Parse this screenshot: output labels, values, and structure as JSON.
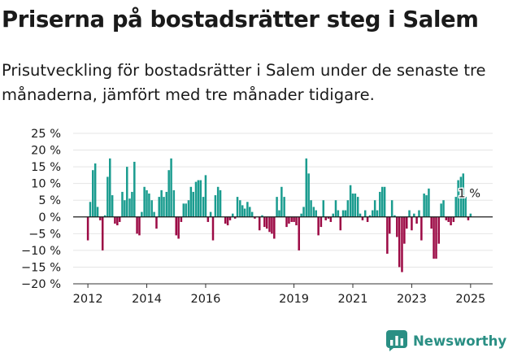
{
  "title": "Priserna på bostadsrätter steg i Salem",
  "subtitle": "Prisutveckling för bostadsrätter i Salem under de senaste tre månaderna, jämfört med tre månader tidigare.",
  "brand": {
    "name": "Newsworthy",
    "icon": "newsworthy-logo-icon",
    "color": "#2a8f84"
  },
  "chart_data": {
    "type": "bar",
    "unit": "%",
    "ylim": [
      -20,
      25
    ],
    "y_ticks": [
      25,
      20,
      15,
      10,
      5,
      0,
      -5,
      -10,
      -15,
      -20
    ],
    "y_tick_labels": [
      "25 %",
      "20 %",
      "15 %",
      "10 %",
      "5 %",
      "0 %",
      "−5 %",
      "−10 %",
      "−15 %",
      "−20 %"
    ],
    "x_ticks": [
      "2012",
      "2014",
      "2016",
      "2019",
      "2021",
      "2023",
      "2025"
    ],
    "x_tick_values": [
      2012,
      2014,
      2016,
      2019,
      2021,
      2023,
      2025
    ],
    "x_range": [
      2011.5,
      2025.75
    ],
    "grid": "horizontal",
    "colors": {
      "positive": "#1a9c8f",
      "negative": "#9c0a45",
      "zero_line": "#1a1a1a",
      "grid": "#e5e5e5"
    },
    "annotation": {
      "text": "1 %",
      "x": 2024.9,
      "y": 1
    },
    "bars": [
      {
        "x": 2012.0,
        "y": -7
      },
      {
        "x": 2012.08,
        "y": 4.5
      },
      {
        "x": 2012.17,
        "y": 14
      },
      {
        "x": 2012.25,
        "y": 16
      },
      {
        "x": 2012.33,
        "y": 3
      },
      {
        "x": 2012.42,
        "y": -1
      },
      {
        "x": 2012.5,
        "y": -10
      },
      {
        "x": 2012.58,
        "y": 0.5
      },
      {
        "x": 2012.67,
        "y": 12
      },
      {
        "x": 2012.75,
        "y": 17.5
      },
      {
        "x": 2012.83,
        "y": 6.5
      },
      {
        "x": 2012.92,
        "y": -2
      },
      {
        "x": 2013.0,
        "y": -2.5
      },
      {
        "x": 2013.08,
        "y": -1.5
      },
      {
        "x": 2013.17,
        "y": 7.5
      },
      {
        "x": 2013.25,
        "y": 5
      },
      {
        "x": 2013.33,
        "y": 15
      },
      {
        "x": 2013.42,
        "y": 5.5
      },
      {
        "x": 2013.5,
        "y": 7.5
      },
      {
        "x": 2013.58,
        "y": 16.5
      },
      {
        "x": 2013.67,
        "y": -5
      },
      {
        "x": 2013.75,
        "y": -5.5
      },
      {
        "x": 2013.83,
        "y": 1.5
      },
      {
        "x": 2013.92,
        "y": 9
      },
      {
        "x": 2014.0,
        "y": 8
      },
      {
        "x": 2014.08,
        "y": 7
      },
      {
        "x": 2014.17,
        "y": 5
      },
      {
        "x": 2014.25,
        "y": 1.5
      },
      {
        "x": 2014.33,
        "y": -3.5
      },
      {
        "x": 2014.42,
        "y": 6
      },
      {
        "x": 2014.5,
        "y": 8
      },
      {
        "x": 2014.58,
        "y": 6
      },
      {
        "x": 2014.67,
        "y": 7.5
      },
      {
        "x": 2014.75,
        "y": 14
      },
      {
        "x": 2014.83,
        "y": 17.5
      },
      {
        "x": 2014.92,
        "y": 8
      },
      {
        "x": 2015.0,
        "y": -5.5
      },
      {
        "x": 2015.08,
        "y": -6.5
      },
      {
        "x": 2015.17,
        "y": -1.5
      },
      {
        "x": 2015.25,
        "y": 4
      },
      {
        "x": 2015.33,
        "y": 4
      },
      {
        "x": 2015.42,
        "y": 5
      },
      {
        "x": 2015.5,
        "y": 9
      },
      {
        "x": 2015.58,
        "y": 7.5
      },
      {
        "x": 2015.67,
        "y": 10.5
      },
      {
        "x": 2015.75,
        "y": 11
      },
      {
        "x": 2015.83,
        "y": 11
      },
      {
        "x": 2015.92,
        "y": 6
      },
      {
        "x": 2016.0,
        "y": 12.5
      },
      {
        "x": 2016.08,
        "y": -1.5
      },
      {
        "x": 2016.17,
        "y": 1.5
      },
      {
        "x": 2016.25,
        "y": -7
      },
      {
        "x": 2016.33,
        "y": 6.5
      },
      {
        "x": 2016.42,
        "y": 9
      },
      {
        "x": 2016.5,
        "y": 8
      },
      {
        "x": 2016.67,
        "y": -2
      },
      {
        "x": 2016.75,
        "y": -2.5
      },
      {
        "x": 2016.83,
        "y": -1
      },
      {
        "x": 2016.92,
        "y": 1
      },
      {
        "x": 2017.0,
        "y": -0.5
      },
      {
        "x": 2017.08,
        "y": 6
      },
      {
        "x": 2017.17,
        "y": 5
      },
      {
        "x": 2017.25,
        "y": 3.5
      },
      {
        "x": 2017.33,
        "y": 2.5
      },
      {
        "x": 2017.42,
        "y": 4.5
      },
      {
        "x": 2017.5,
        "y": 3
      },
      {
        "x": 2017.58,
        "y": 1.5
      },
      {
        "x": 2017.67,
        "y": -0.5
      },
      {
        "x": 2017.83,
        "y": -4
      },
      {
        "x": 2017.92,
        "y": 0.5
      },
      {
        "x": 2018.0,
        "y": -3
      },
      {
        "x": 2018.08,
        "y": -3.5
      },
      {
        "x": 2018.17,
        "y": -4.5
      },
      {
        "x": 2018.25,
        "y": -5
      },
      {
        "x": 2018.33,
        "y": -6.5
      },
      {
        "x": 2018.42,
        "y": 6
      },
      {
        "x": 2018.5,
        "y": 2
      },
      {
        "x": 2018.58,
        "y": 9
      },
      {
        "x": 2018.67,
        "y": 6
      },
      {
        "x": 2018.75,
        "y": -3
      },
      {
        "x": 2018.83,
        "y": -2
      },
      {
        "x": 2018.92,
        "y": -1.5
      },
      {
        "x": 2019.0,
        "y": -1.5
      },
      {
        "x": 2019.08,
        "y": -2.5
      },
      {
        "x": 2019.17,
        "y": -10
      },
      {
        "x": 2019.25,
        "y": 1
      },
      {
        "x": 2019.33,
        "y": 3
      },
      {
        "x": 2019.42,
        "y": 17.5
      },
      {
        "x": 2019.5,
        "y": 13
      },
      {
        "x": 2019.58,
        "y": 5
      },
      {
        "x": 2019.67,
        "y": 3
      },
      {
        "x": 2019.75,
        "y": 2
      },
      {
        "x": 2019.83,
        "y": -5.5
      },
      {
        "x": 2019.92,
        "y": -3
      },
      {
        "x": 2020.0,
        "y": 5
      },
      {
        "x": 2020.08,
        "y": -1
      },
      {
        "x": 2020.17,
        "y": -0.5
      },
      {
        "x": 2020.25,
        "y": -1.5
      },
      {
        "x": 2020.33,
        "y": 1
      },
      {
        "x": 2020.42,
        "y": 5
      },
      {
        "x": 2020.5,
        "y": 2
      },
      {
        "x": 2020.58,
        "y": -4
      },
      {
        "x": 2020.67,
        "y": 2
      },
      {
        "x": 2020.75,
        "y": 2
      },
      {
        "x": 2020.83,
        "y": 5
      },
      {
        "x": 2020.92,
        "y": 9.5
      },
      {
        "x": 2021.0,
        "y": 7
      },
      {
        "x": 2021.08,
        "y": 7
      },
      {
        "x": 2021.17,
        "y": 6
      },
      {
        "x": 2021.25,
        "y": 1
      },
      {
        "x": 2021.33,
        "y": -1
      },
      {
        "x": 2021.42,
        "y": 2
      },
      {
        "x": 2021.5,
        "y": -1.5
      },
      {
        "x": 2021.58,
        "y": 0.5
      },
      {
        "x": 2021.67,
        "y": 2
      },
      {
        "x": 2021.75,
        "y": 5
      },
      {
        "x": 2021.83,
        "y": 2
      },
      {
        "x": 2021.92,
        "y": 7.5
      },
      {
        "x": 2022.0,
        "y": 9
      },
      {
        "x": 2022.08,
        "y": 9
      },
      {
        "x": 2022.17,
        "y": -11
      },
      {
        "x": 2022.25,
        "y": -5
      },
      {
        "x": 2022.33,
        "y": 5
      },
      {
        "x": 2022.42,
        "y": 0.5
      },
      {
        "x": 2022.5,
        "y": -6
      },
      {
        "x": 2022.58,
        "y": -15
      },
      {
        "x": 2022.67,
        "y": -16.5
      },
      {
        "x": 2022.75,
        "y": -8
      },
      {
        "x": 2022.83,
        "y": -3.5
      },
      {
        "x": 2022.92,
        "y": 2
      },
      {
        "x": 2023.0,
        "y": -4
      },
      {
        "x": 2023.08,
        "y": 1
      },
      {
        "x": 2023.17,
        "y": -2
      },
      {
        "x": 2023.25,
        "y": 2
      },
      {
        "x": 2023.33,
        "y": -7
      },
      {
        "x": 2023.42,
        "y": 7
      },
      {
        "x": 2023.5,
        "y": 6.5
      },
      {
        "x": 2023.58,
        "y": 8.5
      },
      {
        "x": 2023.67,
        "y": -3.5
      },
      {
        "x": 2023.75,
        "y": -12.5
      },
      {
        "x": 2023.83,
        "y": -12.5
      },
      {
        "x": 2023.92,
        "y": -8
      },
      {
        "x": 2024.0,
        "y": 4
      },
      {
        "x": 2024.08,
        "y": 5
      },
      {
        "x": 2024.17,
        "y": -1
      },
      {
        "x": 2024.25,
        "y": -1.5
      },
      {
        "x": 2024.33,
        "y": -2.5
      },
      {
        "x": 2024.42,
        "y": -1.5
      },
      {
        "x": 2024.5,
        "y": 6
      },
      {
        "x": 2024.58,
        "y": 11
      },
      {
        "x": 2024.67,
        "y": 12
      },
      {
        "x": 2024.75,
        "y": 13
      },
      {
        "x": 2024.83,
        "y": 6
      },
      {
        "x": 2024.92,
        "y": -1
      },
      {
        "x": 2025.0,
        "y": 1
      }
    ]
  }
}
